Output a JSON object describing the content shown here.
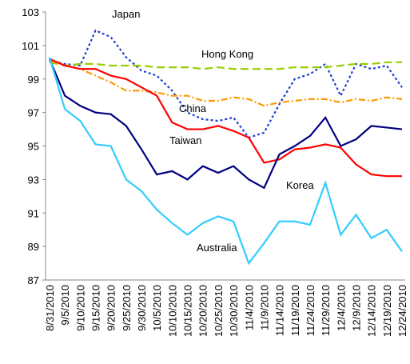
{
  "chart_data": {
    "type": "line",
    "categories": [
      "8/31/2010",
      "9/5/2010",
      "9/10/2010",
      "9/15/2010",
      "9/20/2010",
      "9/25/2010",
      "9/30/2010",
      "10/5/2010",
      "10/10/2010",
      "10/15/2010",
      "10/20/2010",
      "10/25/2010",
      "10/30/2010",
      "11/4/2010",
      "11/9/2010",
      "11/14/2010",
      "11/19/2010",
      "11/24/2010",
      "11/29/2010",
      "12/4/2010",
      "12/9/2010",
      "12/14/2010",
      "12/19/2010",
      "12/24/2010"
    ],
    "series": [
      {
        "name": "Japan",
        "color": "#1f3fcf",
        "dash": "3,3",
        "values": [
          100.1,
          99.9,
          99.8,
          101.9,
          101.5,
          100.3,
          99.5,
          99.2,
          98.3,
          97.0,
          96.6,
          96.5,
          96.7,
          95.5,
          95.8,
          97.5,
          99.0,
          99.3,
          99.9,
          98.0,
          99.9,
          99.6,
          99.8,
          98.5
        ]
      },
      {
        "name": "Hong Kong",
        "color": "#99cc00",
        "dash": "10,5",
        "values": [
          100,
          99.8,
          99.9,
          99.9,
          99.8,
          99.8,
          99.8,
          99.7,
          99.7,
          99.7,
          99.6,
          99.7,
          99.6,
          99.6,
          99.6,
          99.6,
          99.7,
          99.7,
          99.7,
          99.8,
          99.9,
          99.9,
          100,
          100
        ]
      },
      {
        "name": "China",
        "color": "#ff9900",
        "dash": "8,3,2,3",
        "values": [
          100.1,
          99.8,
          99.6,
          99.2,
          98.8,
          98.3,
          98.3,
          98.2,
          98.0,
          98.0,
          97.7,
          97.7,
          97.9,
          97.8,
          97.4,
          97.6,
          97.7,
          97.8,
          97.8,
          97.6,
          97.8,
          97.7,
          97.9,
          97.8
        ]
      },
      {
        "name": "Taiwan",
        "color": "#ff0000",
        "dash": "none",
        "values": [
          100.2,
          99.8,
          99.6,
          99.6,
          99.2,
          99.0,
          98.5,
          98.0,
          96.4,
          96.0,
          96.0,
          96.2,
          95.9,
          95.5,
          94.0,
          94.2,
          94.8,
          94.9,
          95.1,
          94.9,
          93.9,
          93.3,
          93.2,
          93.2
        ]
      },
      {
        "name": "Korea",
        "color": "#000080",
        "dash": "none",
        "values": [
          100.2,
          98.0,
          97.4,
          97.0,
          96.9,
          96.2,
          94.8,
          93.3,
          93.5,
          93.0,
          93.8,
          93.4,
          93.8,
          93.0,
          92.5,
          94.5,
          95.0,
          95.6,
          96.7,
          95.0,
          95.4,
          96.2,
          96.1,
          96.0
        ]
      },
      {
        "name": "Australia",
        "color": "#33ccff",
        "dash": "none",
        "values": [
          100.3,
          97.2,
          96.5,
          95.1,
          95.0,
          93.0,
          92.3,
          91.2,
          90.4,
          89.7,
          90.4,
          90.8,
          90.5,
          88.0,
          89.2,
          90.5,
          90.5,
          90.3,
          92.8,
          89.7,
          90.9,
          89.5,
          90.0,
          88.7
        ]
      }
    ],
    "ylim": [
      87,
      103
    ],
    "yticks": [
      87,
      89,
      91,
      93,
      95,
      97,
      99,
      101,
      103
    ],
    "grid": false
  }
}
